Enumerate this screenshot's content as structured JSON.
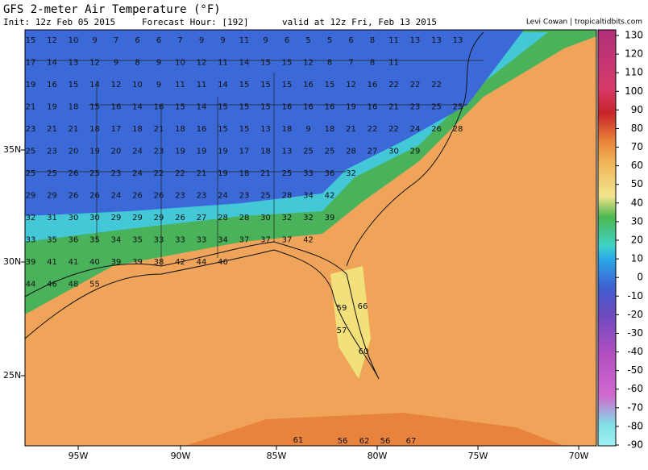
{
  "header": {
    "title": "GFS 2-meter Air Temperature (°F)",
    "init": "Init: 12z Feb 05 2015",
    "forecast": "Forecast Hour: [192]",
    "valid": "valid at 12z Fri, Feb 13 2015",
    "credit": "Levi Cowan | tropicaltidbits.com"
  },
  "map": {
    "lat_labels": [
      "35N",
      "30N",
      "25N"
    ],
    "lon_labels": [
      "95W",
      "90W",
      "85W",
      "80W",
      "75W",
      "70W"
    ],
    "temperature_rows": [
      [
        15,
        12,
        10,
        9,
        7,
        6,
        6,
        7,
        9,
        9,
        11,
        9,
        6,
        5,
        5,
        6,
        8,
        11,
        13,
        13,
        13
      ],
      [
        17,
        14,
        13,
        12,
        9,
        8,
        9,
        10,
        12,
        11,
        14,
        15,
        15,
        12,
        8,
        7,
        8,
        11
      ],
      [
        19,
        16,
        15,
        14,
        12,
        10,
        9,
        11,
        11,
        14,
        15,
        15,
        15,
        16,
        15,
        12,
        16,
        22,
        22,
        22
      ],
      [
        21,
        19,
        18,
        15,
        16,
        14,
        16,
        15,
        14,
        15,
        15,
        15,
        16,
        16,
        16,
        19,
        16,
        21,
        23,
        25,
        25
      ],
      [
        23,
        21,
        21,
        18,
        17,
        18,
        21,
        18,
        16,
        15,
        15,
        13,
        18,
        9,
        18,
        21,
        22,
        22,
        24,
        26,
        28
      ],
      [
        25,
        23,
        20,
        19,
        20,
        24,
        23,
        19,
        19,
        19,
        17,
        18,
        13,
        25,
        25,
        28,
        27,
        30,
        29
      ],
      [
        25,
        25,
        26,
        25,
        23,
        24,
        22,
        22,
        21,
        19,
        18,
        21,
        25,
        33,
        36,
        32
      ],
      [
        29,
        29,
        26,
        26,
        24,
        26,
        26,
        23,
        23,
        24,
        23,
        25,
        28,
        34,
        42
      ],
      [
        32,
        31,
        30,
        30,
        29,
        29,
        29,
        26,
        27,
        28,
        28,
        30,
        32,
        32,
        39
      ],
      [
        33,
        35,
        36,
        35,
        34,
        35,
        33,
        33,
        33,
        34,
        37,
        37,
        37,
        42
      ],
      [
        39,
        41,
        41,
        40,
        39,
        39,
        38,
        42,
        44,
        46
      ],
      [
        44,
        46,
        48,
        55
      ]
    ],
    "extra_values": [
      59,
      57,
      60,
      66,
      61,
      56,
      62,
      56,
      67
    ]
  },
  "colorbar": {
    "ticks": [
      130,
      120,
      110,
      100,
      90,
      80,
      70,
      60,
      50,
      40,
      30,
      20,
      10,
      0,
      -10,
      -20,
      -30,
      -40,
      -50,
      -60,
      -70,
      -80,
      -90
    ]
  }
}
